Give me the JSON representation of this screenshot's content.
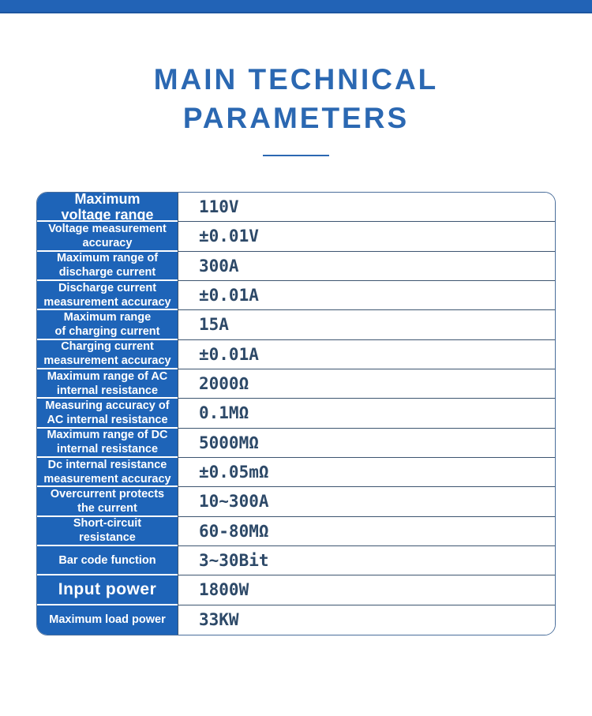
{
  "page": {
    "bg": "#ffffff"
  },
  "top_bar": {
    "color": "#2263b6"
  },
  "title": {
    "line1": "MAIN TECHNICAL",
    "line2": "PARAMETERS",
    "color": "#2b68b2"
  },
  "table": {
    "label_bg": "#1e64b8",
    "label_text_color": "#ffffff",
    "value_text_color": "#2d4968",
    "row_border_color": "#3d5570",
    "outer_border_color": "#4a6e9b",
    "rows": [
      {
        "label_lines": [
          "Maximum",
          "voltage range"
        ],
        "value": "110V",
        "size": "lg"
      },
      {
        "label_lines": [
          "Voltage measurement",
          "accuracy"
        ],
        "value": "±0.01V",
        "size": "md"
      },
      {
        "label_lines": [
          "Maximum range of",
          "discharge current"
        ],
        "value": "300A",
        "size": "md"
      },
      {
        "label_lines": [
          "Discharge current",
          "measurement accuracy"
        ],
        "value": "±0.01A",
        "size": "md"
      },
      {
        "label_lines": [
          "Maximum range",
          "of charging current"
        ],
        "value": "15A",
        "size": "md"
      },
      {
        "label_lines": [
          "Charging current",
          "measurement accuracy"
        ],
        "value": "±0.01A",
        "size": "md"
      },
      {
        "label_lines": [
          "Maximum range of AC",
          "internal resistance"
        ],
        "value": "2000Ω",
        "size": "md"
      },
      {
        "label_lines": [
          "Measuring accuracy of",
          "AC internal resistance"
        ],
        "value": "0.1MΩ",
        "size": "md"
      },
      {
        "label_lines": [
          "Maximum range of DC",
          "internal resistance"
        ],
        "value": "5000MΩ",
        "size": "md"
      },
      {
        "label_lines": [
          "Dc internal resistance",
          "measurement accuracy"
        ],
        "value": "±0.05mΩ",
        "size": "md"
      },
      {
        "label_lines": [
          "Overcurrent protects",
          "the current"
        ],
        "value": "10~300A",
        "size": "md"
      },
      {
        "label_lines": [
          "Short-circuit",
          "resistance"
        ],
        "value": "60-80MΩ",
        "size": "md"
      },
      {
        "label_lines": [
          "Bar code function"
        ],
        "value": "3~30Bit",
        "size": "md"
      },
      {
        "label_lines": [
          "Input power"
        ],
        "value": "1800W",
        "size": "xl"
      },
      {
        "label_lines": [
          "Maximum load power"
        ],
        "value": "33KW",
        "size": "md"
      }
    ]
  }
}
